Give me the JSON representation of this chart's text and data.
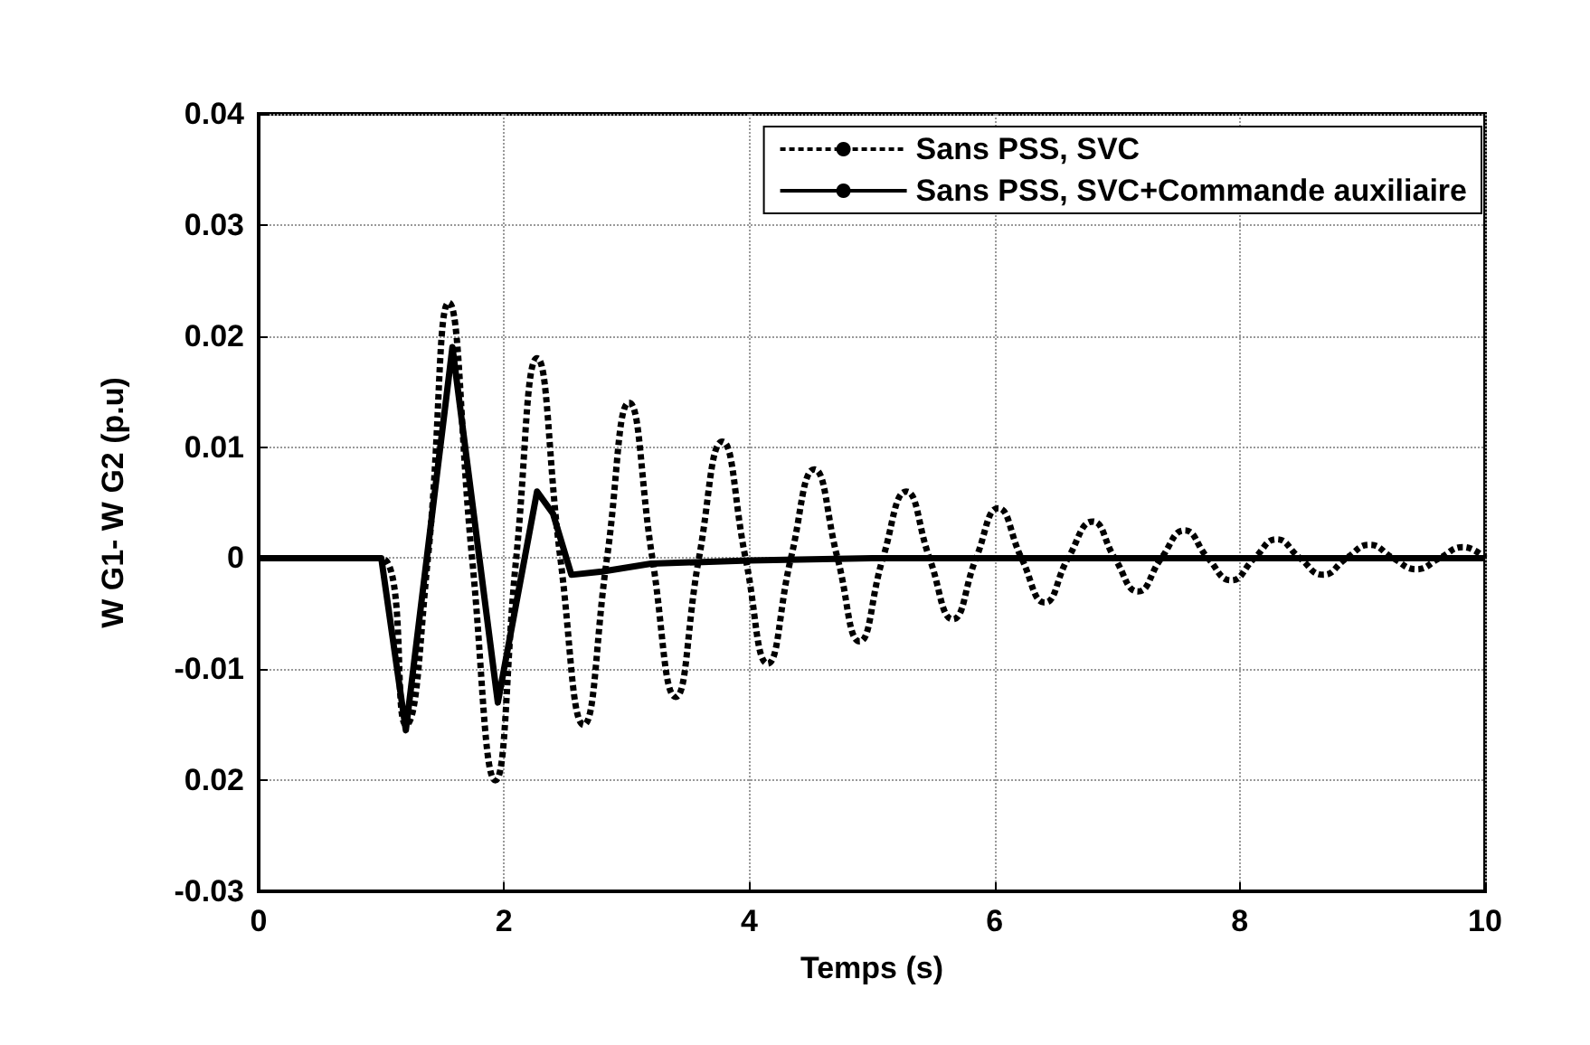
{
  "chart_data": {
    "type": "line",
    "xlabel": "Temps (s)",
    "ylabel": "W G1- W G2 (p.u)",
    "xlim": [
      0,
      10
    ],
    "xticks": [
      0,
      2,
      4,
      6,
      8,
      10
    ],
    "ylim": [
      -0.03,
      0.04
    ],
    "yticks": [
      -0.03,
      -0.01,
      0,
      0.01,
      0.02,
      0.03,
      0.04,
      {
        "value": -0.02,
        "label": "0.02"
      }
    ],
    "grid": true,
    "legend": "top right",
    "marker": "none",
    "series": [
      {
        "name": "Sans PSS, SVC",
        "color": "#000000",
        "line_style": "dotted",
        "x": [
          0,
          1.0,
          1.2,
          1.38,
          1.55,
          1.74,
          1.93,
          2.1,
          2.27,
          2.46,
          2.65,
          2.84,
          3.02,
          3.21,
          3.4,
          3.59,
          3.78,
          3.97,
          4.15,
          4.34,
          4.53,
          4.72,
          4.9,
          5.09,
          5.28,
          5.47,
          5.66,
          5.85,
          6.03,
          6.22,
          6.41,
          6.6,
          6.8,
          6.98,
          7.17,
          7.36,
          7.55,
          7.74,
          7.93,
          8.12,
          8.3,
          8.49,
          8.68,
          8.87,
          9.06,
          9.25,
          9.44,
          9.63,
          9.82,
          10
        ],
        "values": [
          0,
          0,
          -0.015,
          0,
          0.023,
          0,
          -0.02,
          0,
          0.018,
          0,
          -0.015,
          0,
          0.014,
          0,
          -0.0125,
          0,
          0.0105,
          0,
          -0.0095,
          0,
          0.008,
          0,
          -0.0075,
          0,
          0.006,
          0,
          -0.0055,
          0,
          0.0045,
          0,
          -0.004,
          0,
          0.0033,
          0,
          -0.003,
          0,
          0.0025,
          0,
          -0.002,
          0,
          0.0017,
          0,
          -0.0015,
          0,
          0.0012,
          0,
          -0.001,
          0,
          0.001,
          0
        ]
      },
      {
        "name": "Sans PSS, SVC+Commande auxiliaire",
        "color": "#000000",
        "line_style": "solid",
        "x": [
          0,
          1.0,
          1.2,
          1.58,
          1.95,
          2.27,
          2.4,
          2.55,
          2.8,
          3.2,
          4,
          5,
          10
        ],
        "values": [
          0,
          0,
          -0.0155,
          0.019,
          -0.013,
          0.006,
          0.004,
          -0.0015,
          -0.0012,
          -0.0005,
          -0.0002,
          0,
          0
        ]
      }
    ]
  }
}
